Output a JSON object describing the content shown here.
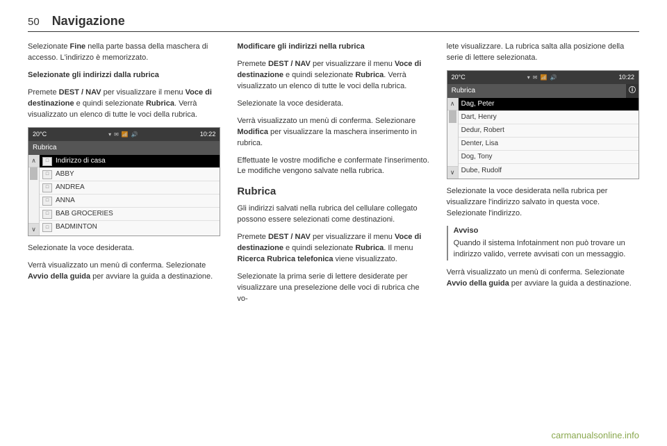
{
  "header": {
    "page_number": "50",
    "section": "Navigazione"
  },
  "col1": {
    "p1_a": "Selezionate ",
    "p1_b": "Fine",
    "p1_c": " nella parte bassa della maschera di accesso. L'indirizzo è memorizzato.",
    "sub1": "Selezionate gli indirizzi dalla rubrica",
    "p2_a": "Premete ",
    "p2_b": "DEST / NAV",
    "p2_c": " per visualizzare il menu ",
    "p2_d": "Voce di destinazione",
    "p2_e": " e quindi selezionate ",
    "p2_f": "Rubrica",
    "p2_g": ". Verrà visualizzato un elenco di tutte le voci della rubrica.",
    "p3": "Selezionate la voce desiderata.",
    "p4_a": "Verrà visualizzato un menù di conferma. Selezionate ",
    "p4_b": "Avvio della guida",
    "p4_c": " per avviare la guida a destinazione."
  },
  "col2": {
    "sub1": "Modificare gli indirizzi nella rubrica",
    "p1_a": "Premete ",
    "p1_b": "DEST / NAV",
    "p1_c": " per visualizzare il menu ",
    "p1_d": "Voce di destinazione",
    "p1_e": " e quindi selezionate ",
    "p1_f": "Rubrica",
    "p1_g": ". Verrà visualizzato un elenco di tutte le voci della rubrica.",
    "p2": "Selezionate la voce desiderata.",
    "p3_a": "Verrà visualizzato un menù di conferma. Selezionare ",
    "p3_b": "Modifica",
    "p3_c": " per visualizzare la maschera inserimento in rubrica.",
    "p4": "Effettuate le vostre modifiche e confermate l'inserimento. Le modifiche vengono salvate nella rubrica.",
    "head": "Rubrica",
    "p5": "Gli indirizzi salvati nella rubrica del cellulare collegato possono essere selezionati come destinazioni.",
    "p6_a": "Premete ",
    "p6_b": "DEST / NAV",
    "p6_c": " per visualizzare il menu ",
    "p6_d": "Voce di destinazione",
    "p6_e": " e quindi selezionate ",
    "p6_f": "Rubrica",
    "p6_g": ". Il menu ",
    "p6_h": "Ricerca Rubrica telefonica",
    "p6_i": " viene visualizzato.",
    "p7": "Selezionate la prima serie di lettere desiderate per visualizzare una preselezione delle voci di rubrica che vo-"
  },
  "col3": {
    "p1": "lete visualizzare. La rubrica salta alla posizione della serie di lettere selezionata.",
    "p2_a": "Selezionate la voce desiderata nella rubrica per visualizzare l'indirizzo salvato in questa voce. Selezionate l'indirizzo.",
    "note_title": "Avviso",
    "note_body": "Quando il sistema Infotainment non può trovare un indirizzo valido, verrete avvisati con un messaggio.",
    "p3_a": "Verrà visualizzato un menù di conferma. Selezionate ",
    "p3_b": "Avvio della guida",
    "p3_c": " per avviare la guida a destinazione."
  },
  "screenshot1": {
    "temp": "20°C",
    "time": "10:22",
    "title": "Rubrica",
    "rows": [
      {
        "label": "Indirizzo di casa",
        "selected": true
      },
      {
        "label": "ABBY",
        "selected": false
      },
      {
        "label": "ANDREA",
        "selected": false
      },
      {
        "label": "ANNA",
        "selected": false
      },
      {
        "label": "BAB GROCERIES",
        "selected": false
      },
      {
        "label": "BADMINTON",
        "selected": false
      }
    ]
  },
  "screenshot2": {
    "temp": "20°C",
    "time": "10:22",
    "title": "Rubrica",
    "info": "ⓘ",
    "rows": [
      {
        "label": "Dag, Peter",
        "selected": true
      },
      {
        "label": "Dart, Henry",
        "selected": false
      },
      {
        "label": "Dedur, Robert",
        "selected": false
      },
      {
        "label": "Denter, Lisa",
        "selected": false
      },
      {
        "label": "Dog, Tony",
        "selected": false
      },
      {
        "label": "Dube, Rudolf",
        "selected": false
      }
    ]
  },
  "footer": {
    "link": "carmanualsonline.info"
  },
  "colors": {
    "text": "#333333",
    "border": "#333333",
    "screen_dark": "#3a3a3a",
    "screen_mid": "#555555",
    "footer_link": "#8aa84f"
  }
}
